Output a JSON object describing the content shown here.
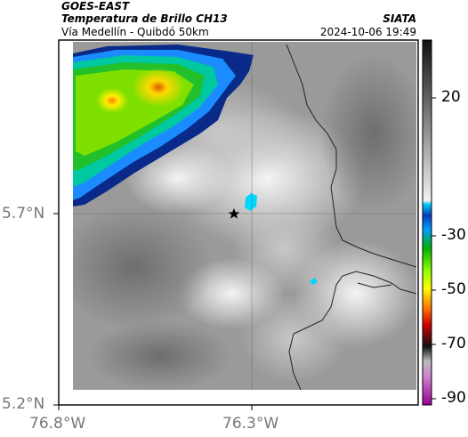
{
  "header": {
    "satellite": "GOES-EAST",
    "product": "Temperatura de Brillo CH13",
    "location": "Vía Medellín - Quibdó 50km",
    "org": "SIATA",
    "datetime": "2024-10-06 19:49"
  },
  "axes": {
    "lon_ticks": [
      "76.8°W",
      "76.3°W"
    ],
    "lat_ticks": [
      "5.7°N",
      "5.2°N"
    ]
  },
  "colorbar": {
    "tick_labels": [
      "20",
      "-30",
      "-50",
      "-70",
      "-90"
    ]
  },
  "marker": {
    "icon": "star-icon"
  },
  "colors": {
    "gray_base": "#9a9a9a",
    "cloud_cold": "#ff3a00",
    "cloud_blue": "#0a2a8a"
  }
}
